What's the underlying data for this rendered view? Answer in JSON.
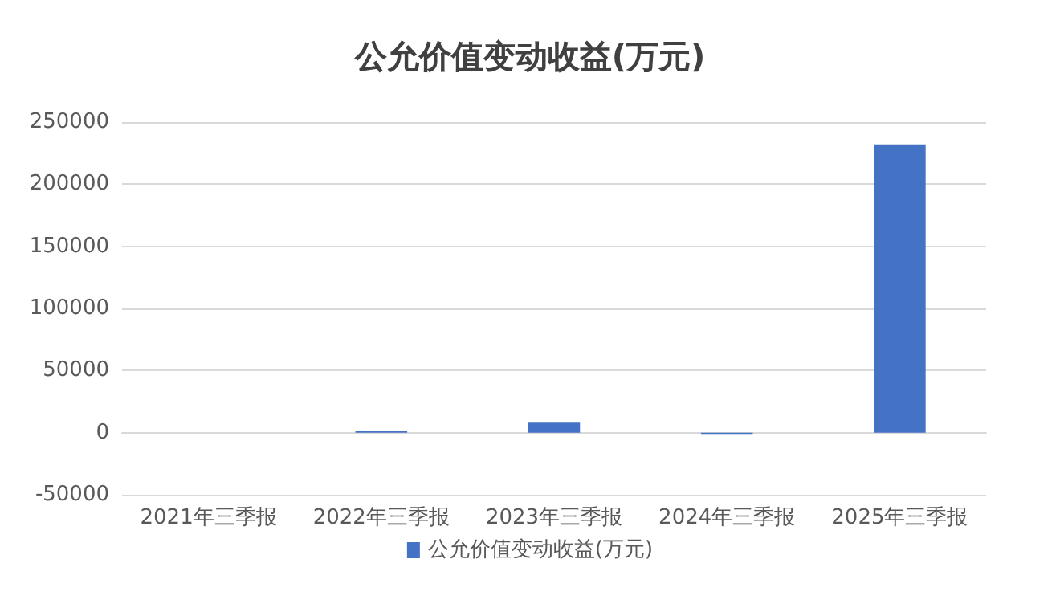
{
  "chart_data": {
    "type": "bar",
    "title": "公允价值变动收益(万元)",
    "categories": [
      "2021年三季报",
      "2022年三季报",
      "2023年三季报",
      "2024年三季报",
      "2025年三季报"
    ],
    "series": [
      {
        "name": "公允价值变动收益(万元)",
        "color": "#4472c4",
        "values": [
          0,
          1000,
          8000,
          -1000,
          232000
        ]
      }
    ],
    "ylim": [
      -50000,
      250000
    ],
    "yticks": [
      -50000,
      0,
      50000,
      100000,
      150000,
      200000,
      250000
    ],
    "grid": "y",
    "legend": "bottom"
  }
}
